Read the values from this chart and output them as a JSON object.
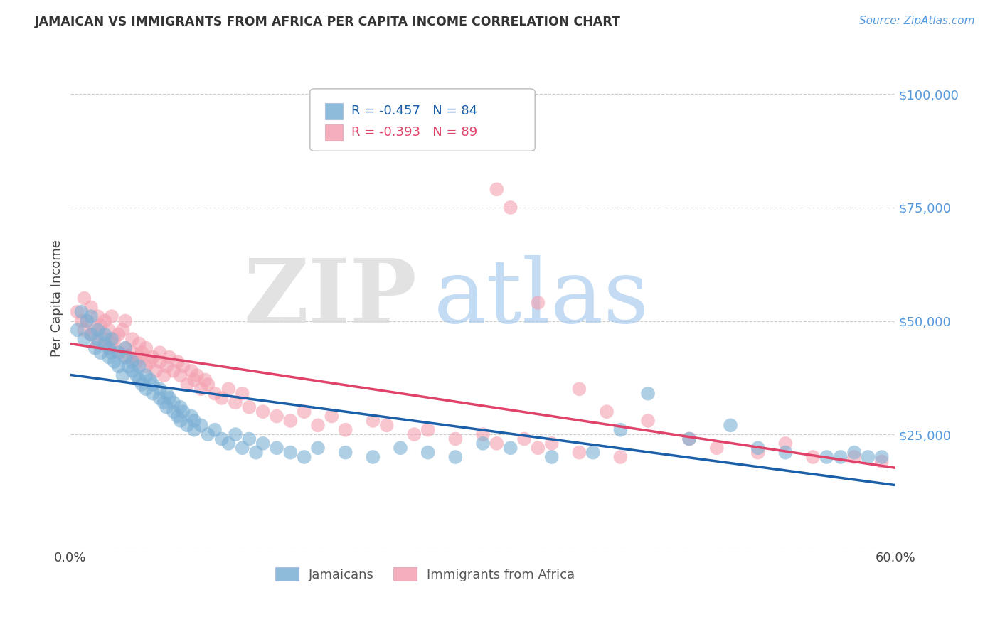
{
  "title": "JAMAICAN VS IMMIGRANTS FROM AFRICA PER CAPITA INCOME CORRELATION CHART",
  "source": "Source: ZipAtlas.com",
  "ylabel": "Per Capita Income",
  "xlim": [
    0.0,
    0.6
  ],
  "ylim": [
    0,
    110000
  ],
  "yticks": [
    0,
    25000,
    50000,
    75000,
    100000
  ],
  "ytick_labels": [
    "",
    "$25,000",
    "$50,000",
    "$75,000",
    "$100,000"
  ],
  "xticks": [
    0.0,
    0.1,
    0.2,
    0.3,
    0.4,
    0.5,
    0.6
  ],
  "xtick_labels": [
    "0.0%",
    "",
    "",
    "",
    "",
    "",
    "60.0%"
  ],
  "series1_label": "Jamaicans",
  "series2_label": "Immigrants from Africa",
  "series1_R": -0.457,
  "series1_N": 84,
  "series2_R": -0.393,
  "series2_N": 89,
  "series1_color": "#7BAFD4",
  "series2_color": "#F4A0B0",
  "series1_line_color": "#1A5FA8",
  "series2_line_color": "#E0436A",
  "background_color": "#FFFFFF",
  "seed": 42,
  "jamaicans_x": [
    0.005,
    0.008,
    0.01,
    0.012,
    0.015,
    0.015,
    0.018,
    0.02,
    0.02,
    0.022,
    0.025,
    0.025,
    0.028,
    0.028,
    0.03,
    0.03,
    0.032,
    0.035,
    0.035,
    0.038,
    0.04,
    0.04,
    0.042,
    0.045,
    0.045,
    0.048,
    0.05,
    0.05,
    0.052,
    0.055,
    0.055,
    0.058,
    0.06,
    0.06,
    0.065,
    0.065,
    0.068,
    0.07,
    0.07,
    0.072,
    0.075,
    0.075,
    0.078,
    0.08,
    0.08,
    0.082,
    0.085,
    0.088,
    0.09,
    0.09,
    0.095,
    0.1,
    0.105,
    0.11,
    0.115,
    0.12,
    0.125,
    0.13,
    0.135,
    0.14,
    0.15,
    0.16,
    0.17,
    0.18,
    0.2,
    0.22,
    0.24,
    0.26,
    0.28,
    0.3,
    0.32,
    0.35,
    0.38,
    0.4,
    0.42,
    0.45,
    0.48,
    0.5,
    0.52,
    0.55,
    0.56,
    0.57,
    0.58,
    0.59
  ],
  "jamaicans_y": [
    48000,
    52000,
    46000,
    50000,
    47000,
    51000,
    44000,
    46000,
    48000,
    43000,
    45000,
    47000,
    42000,
    44000,
    43000,
    46000,
    41000,
    40000,
    43000,
    38000,
    42000,
    44000,
    40000,
    39000,
    41000,
    38000,
    37000,
    40000,
    36000,
    38000,
    35000,
    37000,
    34000,
    36000,
    33000,
    35000,
    32000,
    34000,
    31000,
    33000,
    30000,
    32000,
    29000,
    31000,
    28000,
    30000,
    27000,
    29000,
    26000,
    28000,
    27000,
    25000,
    26000,
    24000,
    23000,
    25000,
    22000,
    24000,
    21000,
    23000,
    22000,
    21000,
    20000,
    22000,
    21000,
    20000,
    22000,
    21000,
    20000,
    23000,
    22000,
    20000,
    21000,
    26000,
    34000,
    24000,
    27000,
    22000,
    21000,
    20000,
    20000,
    21000,
    20000,
    20000
  ],
  "africa_x": [
    0.005,
    0.008,
    0.01,
    0.01,
    0.012,
    0.015,
    0.015,
    0.018,
    0.02,
    0.02,
    0.022,
    0.025,
    0.025,
    0.028,
    0.028,
    0.03,
    0.03,
    0.032,
    0.035,
    0.035,
    0.038,
    0.04,
    0.04,
    0.042,
    0.045,
    0.045,
    0.048,
    0.05,
    0.05,
    0.052,
    0.055,
    0.055,
    0.058,
    0.06,
    0.062,
    0.065,
    0.065,
    0.068,
    0.07,
    0.072,
    0.075,
    0.078,
    0.08,
    0.082,
    0.085,
    0.088,
    0.09,
    0.092,
    0.095,
    0.098,
    0.1,
    0.105,
    0.11,
    0.115,
    0.12,
    0.125,
    0.13,
    0.14,
    0.15,
    0.16,
    0.17,
    0.18,
    0.19,
    0.2,
    0.22,
    0.23,
    0.25,
    0.26,
    0.28,
    0.3,
    0.31,
    0.33,
    0.34,
    0.35,
    0.37,
    0.4,
    0.31,
    0.32,
    0.34,
    0.37,
    0.39,
    0.42,
    0.45,
    0.47,
    0.5,
    0.52,
    0.54,
    0.57,
    0.59
  ],
  "africa_y": [
    52000,
    50000,
    55000,
    48000,
    50000,
    53000,
    47000,
    48000,
    51000,
    45000,
    49000,
    50000,
    46000,
    48000,
    44000,
    51000,
    45000,
    46000,
    47000,
    43000,
    48000,
    44000,
    50000,
    42000,
    46000,
    43000,
    41000,
    45000,
    42000,
    43000,
    40000,
    44000,
    41000,
    42000,
    39000,
    41000,
    43000,
    38000,
    40000,
    42000,
    39000,
    41000,
    38000,
    40000,
    36000,
    39000,
    37000,
    38000,
    35000,
    37000,
    36000,
    34000,
    33000,
    35000,
    32000,
    34000,
    31000,
    30000,
    29000,
    28000,
    30000,
    27000,
    29000,
    26000,
    28000,
    27000,
    25000,
    26000,
    24000,
    25000,
    23000,
    24000,
    22000,
    23000,
    21000,
    20000,
    79000,
    75000,
    54000,
    35000,
    30000,
    28000,
    24000,
    22000,
    21000,
    23000,
    20000,
    20000,
    19000
  ]
}
